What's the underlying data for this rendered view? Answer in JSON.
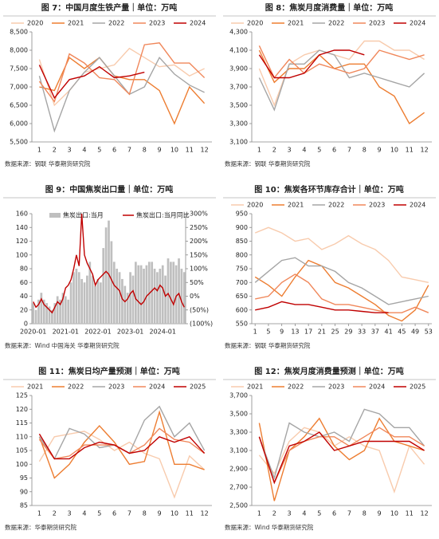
{
  "chart_data": [
    {
      "type": "line",
      "title": "图 7：中国月度生铁产量｜单位：万吨",
      "source": "数据来源：钢联 华泰期货研究院",
      "categories": [
        "1",
        "2",
        "3",
        "4",
        "5",
        "6",
        "7",
        "8",
        "9",
        "10",
        "11",
        "12"
      ],
      "ylim": [
        5500,
        8500
      ],
      "yticks": [
        {
          "value": 5500,
          "label": "5,500"
        },
        {
          "value": 6000,
          "label": "6,000"
        },
        {
          "value": 6500,
          "label": "6,500"
        },
        {
          "value": 7000,
          "label": "7,000"
        },
        {
          "value": 7500,
          "label": "7,500"
        },
        {
          "value": 8000,
          "label": "8,000"
        },
        {
          "value": 8500,
          "label": "8,500"
        }
      ],
      "legend": "top",
      "series": [
        {
          "name": "2020",
          "color": "#f8cbad",
          "values": [
            7750,
            6500,
            6900,
            7400,
            7500,
            7600,
            8050,
            7800,
            7550,
            7600,
            7300,
            7500
          ]
        },
        {
          "name": "2021",
          "color": "#ed7d31",
          "values": [
            7000,
            6900,
            7800,
            7500,
            7800,
            7300,
            7200,
            7200,
            6900,
            6000,
            7000,
            6550
          ]
        },
        {
          "name": "2022",
          "color": "#a5a5a5",
          "values": [
            7300,
            5800,
            6900,
            7400,
            7800,
            7300,
            6800,
            7000,
            7800,
            7350,
            7050,
            6850
          ]
        },
        {
          "name": "2023",
          "color": "#f0875a",
          "values": [
            7150,
            6600,
            7900,
            7650,
            7250,
            7200,
            6800,
            8150,
            8200,
            7650,
            7650,
            7250
          ]
        },
        {
          "name": "2024",
          "color": "#c00000",
          "values": [
            7600,
            6700,
            7200,
            7300,
            7550,
            7250,
            7300,
            7400,
            null,
            null,
            null,
            null
          ]
        }
      ]
    },
    {
      "type": "line",
      "title": "图 8：焦炭月度消费量｜单位：万吨",
      "source": "数据来源：钢联 华泰期货研究院",
      "categories": [
        "1",
        "2",
        "3",
        "4",
        "5",
        "6",
        "7",
        "8",
        "9",
        "10",
        "11",
        "12"
      ],
      "ylim": [
        3100,
        4300
      ],
      "yticks": [
        {
          "value": 3100,
          "label": "3,100"
        },
        {
          "value": 3300,
          "label": "3,300"
        },
        {
          "value": 3500,
          "label": "3,500"
        },
        {
          "value": 3700,
          "label": "3,700"
        },
        {
          "value": 3900,
          "label": "3,900"
        },
        {
          "value": 4100,
          "label": "4,100"
        },
        {
          "value": 4300,
          "label": "4,300"
        }
      ],
      "legend": "top",
      "series": [
        {
          "name": "2020",
          "color": "#f8cbad",
          "values": [
            3900,
            3500,
            3950,
            4050,
            4100,
            4050,
            4000,
            4200,
            4200,
            4100,
            4100,
            4000
          ]
        },
        {
          "name": "2021",
          "color": "#ed7d31",
          "values": [
            4100,
            3750,
            3900,
            3900,
            4050,
            3900,
            3950,
            3950,
            3700,
            3600,
            3300,
            3420
          ]
        },
        {
          "name": "2022",
          "color": "#a5a5a5",
          "values": [
            3800,
            3450,
            3950,
            3950,
            4100,
            4050,
            3800,
            3850,
            3800,
            3750,
            3700,
            3850
          ]
        },
        {
          "name": "2023",
          "color": "#f0875a",
          "values": [
            4150,
            3800,
            4000,
            3850,
            3950,
            3900,
            3850,
            3900,
            4100,
            4050,
            4000,
            4050
          ]
        },
        {
          "name": "2024",
          "color": "#c00000",
          "values": [
            4050,
            3800,
            3800,
            3850,
            4050,
            4100,
            4100,
            4050,
            null,
            null,
            null,
            null
          ]
        }
      ]
    },
    {
      "type": "bar",
      "title": "图 9：中国焦炭出口量｜单位：万吨",
      "source": "数据来源：Wind 中国海关 华泰期货研究院",
      "categories": [
        "2020-01",
        null,
        null,
        null,
        null,
        null,
        null,
        null,
        null,
        null,
        null,
        null,
        "2021-01",
        null,
        null,
        null,
        null,
        null,
        null,
        null,
        null,
        null,
        null,
        null,
        "2022-01",
        null,
        null,
        null,
        null,
        null,
        null,
        null,
        null,
        null,
        null,
        null,
        "2023-01",
        null,
        null,
        null,
        null,
        null,
        null,
        null,
        null,
        null,
        null,
        null,
        "2024-01",
        null,
        null,
        null,
        null,
        null,
        null,
        null,
        null
      ],
      "ylim": [
        0,
        160
      ],
      "yticks": [
        0,
        20,
        40,
        60,
        80,
        100,
        120,
        140,
        160
      ],
      "y2lim": [
        -100,
        300
      ],
      "y2ticks": [
        {
          "value": 300,
          "label": "300%"
        },
        {
          "value": 250,
          "label": "250%"
        },
        {
          "value": 200,
          "label": "200%"
        },
        {
          "value": 150,
          "label": "150%"
        },
        {
          "value": 100,
          "label": "100%"
        },
        {
          "value": 50,
          "label": "50%"
        },
        {
          "value": 0,
          "label": "0%"
        },
        {
          "value": -50,
          "label": "(50%)"
        },
        {
          "value": -100,
          "label": "(100%)"
        }
      ],
      "legend": "inside",
      "series": [
        {
          "name": "焦炭出口:当月",
          "type": "bar",
          "color": "#bfbfbf",
          "values": [
            30,
            20,
            35,
            45,
            35,
            30,
            25,
            20,
            30,
            40,
            35,
            45,
            40,
            35,
            60,
            75,
            80,
            75,
            65,
            60,
            70,
            90,
            70,
            55,
            65,
            60,
            110,
            140,
            150,
            120,
            90,
            80,
            75,
            65,
            55,
            45,
            75,
            70,
            90,
            85,
            85,
            80,
            85,
            90,
            90,
            80,
            75,
            80,
            85,
            70,
            95,
            90,
            90,
            85,
            95,
            80,
            75
          ]
        },
        {
          "name": "焦炭出口:当月同比",
          "type": "line",
          "axis": "y2",
          "color": "#c00000",
          "values": [
            -20,
            -40,
            -30,
            -10,
            -30,
            -40,
            -50,
            -60,
            -40,
            -20,
            -30,
            -10,
            30,
            40,
            60,
            100,
            150,
            110,
            300,
            150,
            120,
            100,
            80,
            40,
            60,
            70,
            80,
            90,
            80,
            60,
            40,
            30,
            20,
            -10,
            -20,
            -10,
            10,
            20,
            -10,
            -20,
            -30,
            -20,
            0,
            10,
            20,
            30,
            20,
            40,
            30,
            0,
            10,
            -10,
            -30,
            0,
            10,
            -20,
            -40
          ]
        }
      ]
    },
    {
      "type": "line",
      "title": "图 10：焦炭各环节库存合计｜单位：万吨",
      "source": "数据来源：钢联 华泰期货研究院",
      "x": [
        1,
        5,
        9,
        13,
        17,
        21,
        25,
        29,
        33,
        37,
        41,
        45,
        49,
        53
      ],
      "xlim": [
        0,
        54
      ],
      "xticks": [
        1,
        5,
        9,
        13,
        17,
        21,
        25,
        29,
        33,
        37,
        41,
        45,
        49,
        53
      ],
      "ylim": [
        550,
        950
      ],
      "yticks": [
        550,
        600,
        650,
        700,
        750,
        800,
        850,
        900,
        950
      ],
      "legend": "top",
      "series": [
        {
          "name": "2020",
          "color": "#f8cbad",
          "values": [
            880,
            900,
            880,
            850,
            860,
            820,
            840,
            870,
            840,
            820,
            780,
            720,
            710,
            700
          ]
        },
        {
          "name": "2021",
          "color": "#ed7d31",
          "values": [
            720,
            690,
            650,
            720,
            780,
            760,
            700,
            680,
            650,
            620,
            580,
            560,
            600,
            690
          ]
        },
        {
          "name": "2022",
          "color": "#a5a5a5",
          "values": [
            700,
            740,
            780,
            790,
            760,
            760,
            740,
            700,
            680,
            650,
            620,
            630,
            640,
            650
          ]
        },
        {
          "name": "2023",
          "color": "#f0875a",
          "values": [
            640,
            650,
            700,
            730,
            700,
            640,
            620,
            620,
            610,
            600,
            590,
            590,
            610,
            590
          ]
        },
        {
          "name": "2024",
          "color": "#c00000",
          "values": [
            600,
            610,
            630,
            620,
            620,
            610,
            600,
            600,
            595,
            590,
            590,
            null,
            null,
            null
          ]
        }
      ]
    },
    {
      "type": "line",
      "title": "图 11：焦炭日均产量预测｜单位：万吨",
      "source": "数据来源：华泰期货研究院",
      "categories": [
        "1",
        "2",
        "3",
        "4",
        "5",
        "6",
        "7",
        "8",
        "9",
        "10",
        "11",
        "12"
      ],
      "ylim": [
        85,
        125
      ],
      "yticks": [
        85,
        90,
        95,
        100,
        105,
        110,
        115,
        120,
        125
      ],
      "legend": "top",
      "series": [
        {
          "name": "2021",
          "color": "#f8cbad",
          "values": [
            101,
            110,
            111,
            112,
            109,
            105,
            108,
            104,
            102,
            88,
            103,
            98
          ]
        },
        {
          "name": "2022",
          "color": "#ed7d31",
          "values": [
            110,
            95,
            100,
            108,
            114,
            108,
            100,
            101,
            119,
            100,
            100,
            98
          ]
        },
        {
          "name": "2023",
          "color": "#a5a5a5",
          "values": [
            110,
            102,
            113,
            111,
            106,
            107,
            104,
            116,
            121,
            110,
            115,
            105
          ]
        },
        {
          "name": "2024",
          "color": "#f0875a",
          "values": [
            109,
            102,
            103,
            107,
            107,
            107,
            104,
            107,
            113,
            109,
            108,
            104
          ]
        },
        {
          "name": "2025",
          "color": "#c00000",
          "values": [
            111,
            102,
            102,
            106,
            108,
            107,
            104,
            105,
            110,
            108,
            110,
            104
          ]
        }
      ]
    },
    {
      "type": "line",
      "title": "图 12：焦炭月度消费量预测｜单位：万吨",
      "source": "数据来源：Wind 华泰期货研究院",
      "categories": [
        "1",
        "2",
        "3",
        "4",
        "5",
        "6",
        "7",
        "8",
        "9",
        "10",
        "11",
        "12"
      ],
      "ylim": [
        2500,
        3700
      ],
      "yticks": [
        {
          "value": 2500,
          "label": "2,500"
        },
        {
          "value": 2700,
          "label": "2,700"
        },
        {
          "value": 2900,
          "label": "2,900"
        },
        {
          "value": 3100,
          "label": "3,100"
        },
        {
          "value": 3300,
          "label": "3,300"
        },
        {
          "value": 3500,
          "label": "3,500"
        },
        {
          "value": 3700,
          "label": "3,700"
        }
      ],
      "legend": "top",
      "series": [
        {
          "name": "2021",
          "color": "#f8cbad",
          "values": [
            3050,
            2850,
            3200,
            3350,
            3300,
            3150,
            3250,
            3150,
            3100,
            2650,
            3150,
            2950
          ]
        },
        {
          "name": "2022",
          "color": "#ed7d31",
          "values": [
            3400,
            2550,
            3100,
            3250,
            3450,
            3150,
            3000,
            3100,
            3450,
            3200,
            3150,
            3100
          ]
        },
        {
          "name": "2023",
          "color": "#a5a5a5",
          "values": [
            3250,
            2800,
            3400,
            3300,
            3250,
            3300,
            3200,
            3550,
            3500,
            3350,
            3350,
            3150
          ]
        },
        {
          "name": "2024",
          "color": "#f0875a",
          "values": [
            3250,
            2750,
            3100,
            3200,
            3250,
            3250,
            3150,
            3250,
            3350,
            3250,
            3250,
            3150
          ]
        },
        {
          "name": "2025",
          "color": "#c00000",
          "values": [
            3250,
            2750,
            3150,
            3200,
            3300,
            3100,
            3150,
            3200,
            3200,
            3200,
            3200,
            3100
          ]
        }
      ]
    }
  ]
}
